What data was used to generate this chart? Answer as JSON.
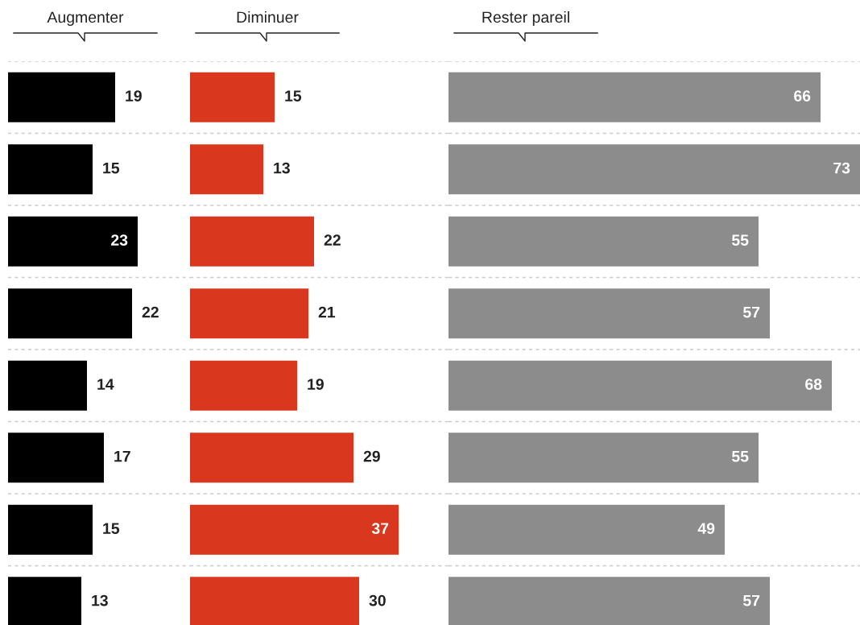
{
  "chart_data": [
    {
      "type": "bar",
      "orientation": "horizontal",
      "title": "Augmenter",
      "categories": [
        null,
        null,
        null,
        null,
        null,
        null,
        null,
        null
      ],
      "values": [
        19,
        15,
        23,
        22,
        14,
        17,
        15,
        13
      ],
      "color": "#000000",
      "data_labels": true,
      "grid": true
    },
    {
      "type": "bar",
      "orientation": "horizontal",
      "title": "Diminuer",
      "categories": [
        null,
        null,
        null,
        null,
        null,
        null,
        null,
        null
      ],
      "values": [
        15,
        13,
        22,
        21,
        19,
        29,
        37,
        30
      ],
      "color": "#d9381e",
      "data_labels": true,
      "grid": true
    },
    {
      "type": "bar",
      "orientation": "horizontal",
      "title": "Rester pareil",
      "categories": [
        null,
        null,
        null,
        null,
        null,
        null,
        null,
        null
      ],
      "values": [
        66,
        73,
        55,
        57,
        68,
        55,
        49,
        57
      ],
      "color": "#8c8c8c",
      "data_labels": true,
      "grid": true
    }
  ]
}
